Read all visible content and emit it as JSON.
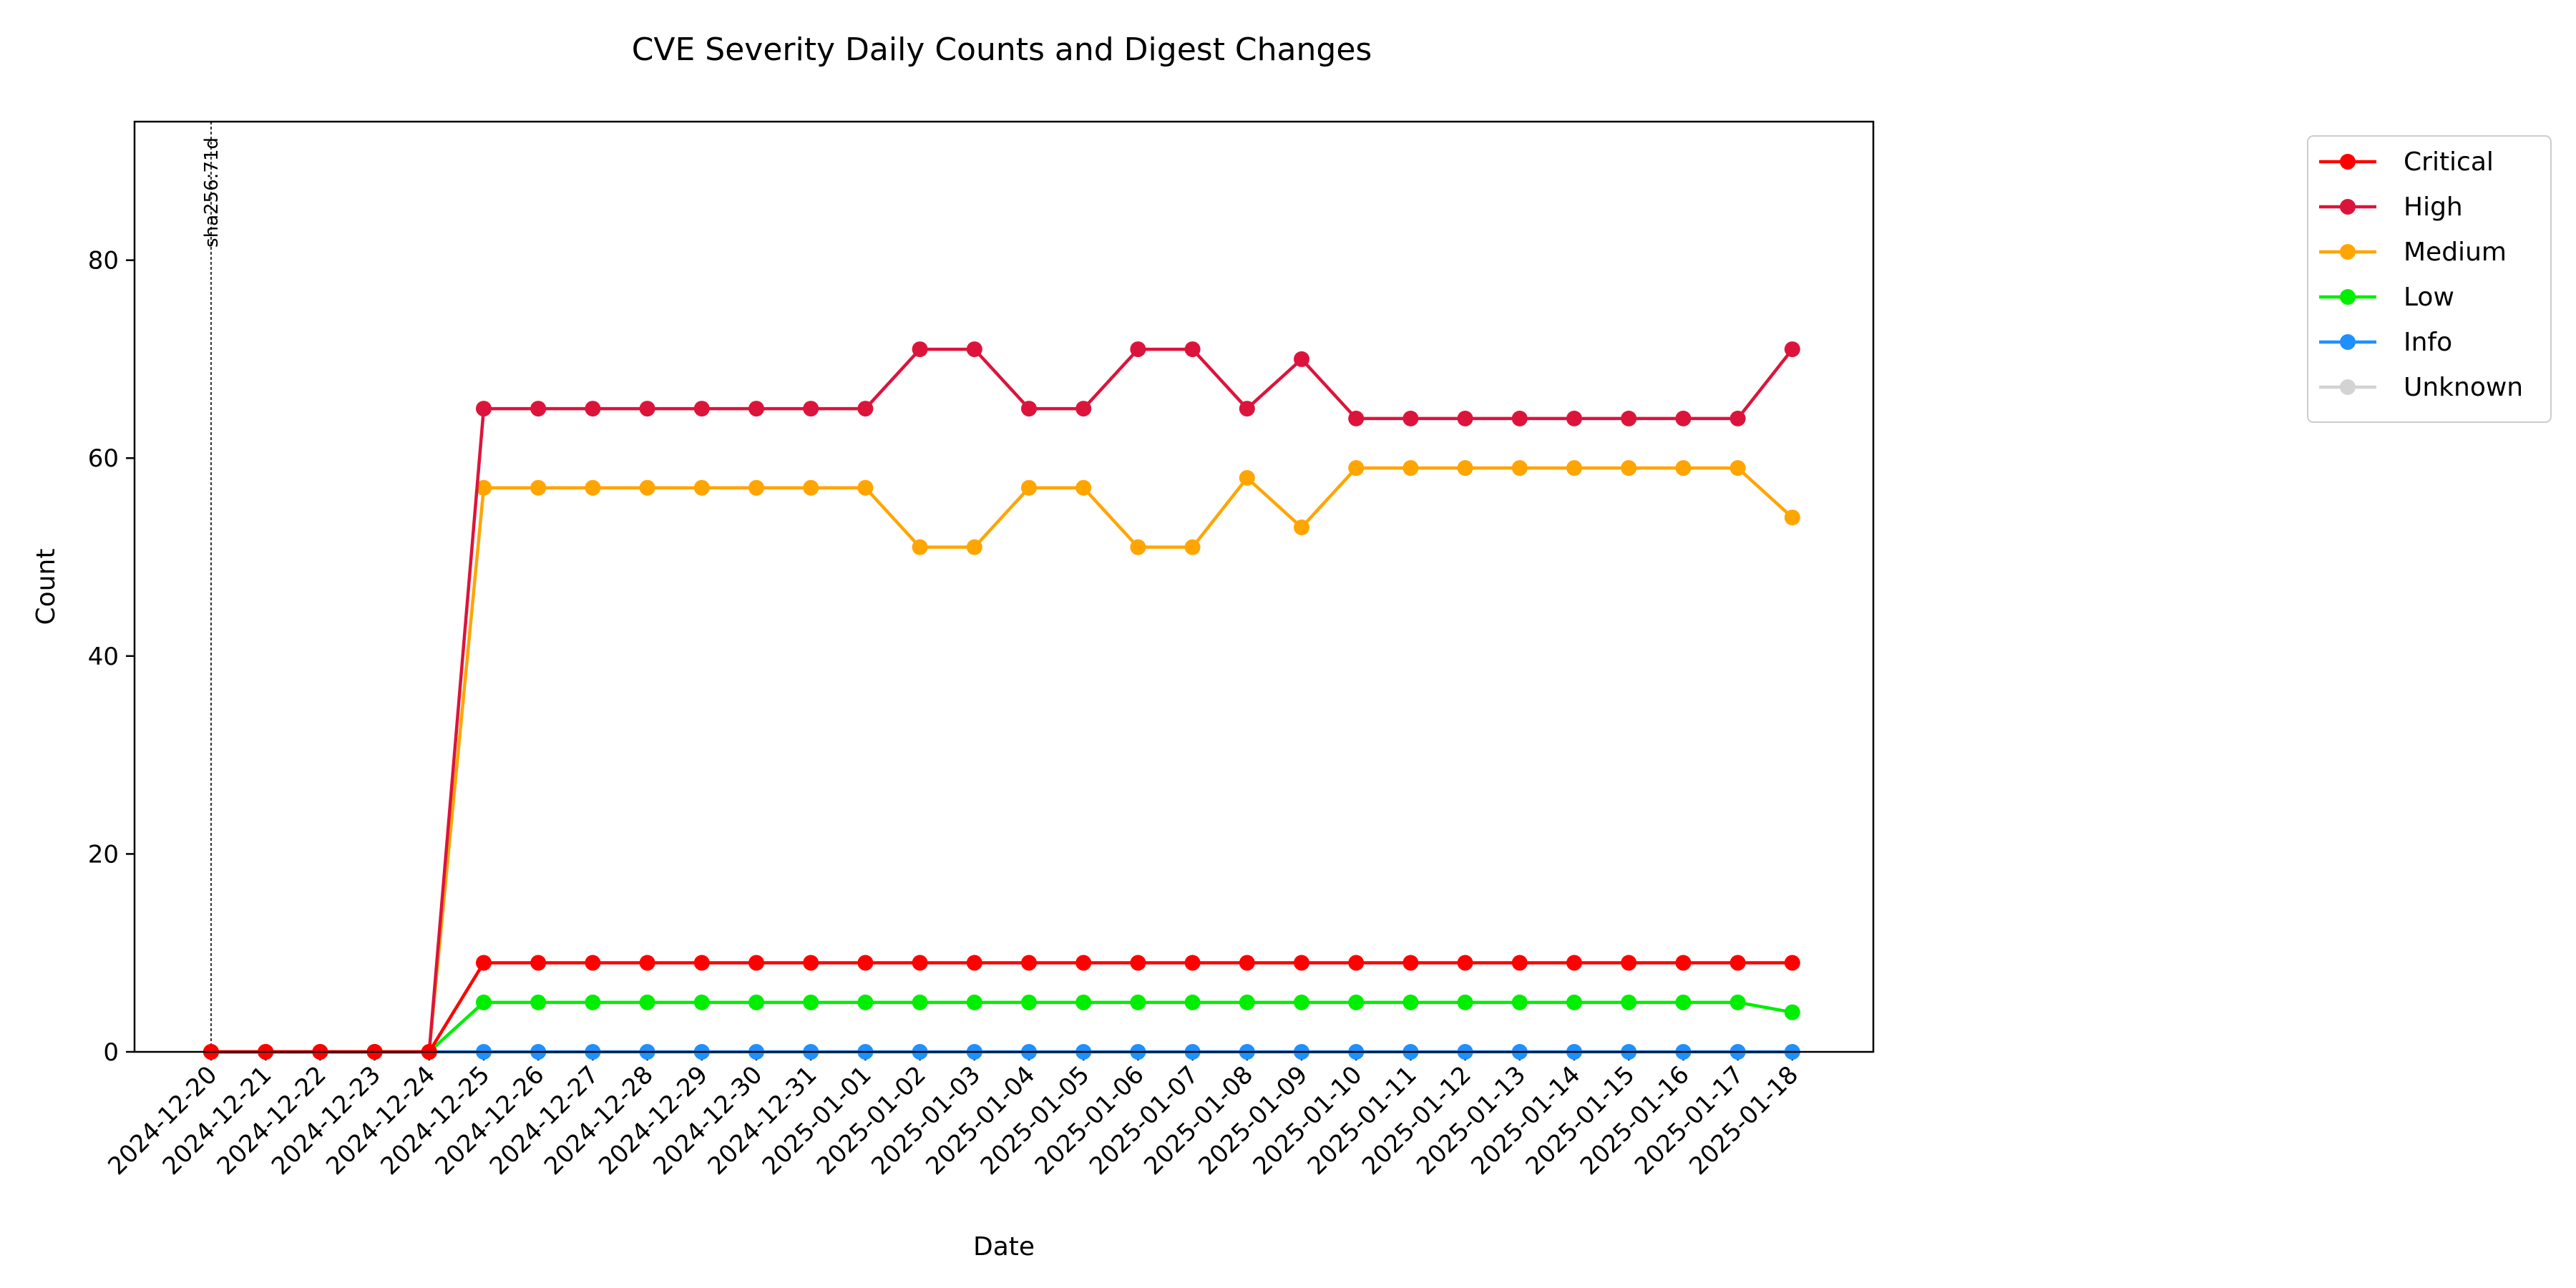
{
  "chart_data": {
    "type": "line",
    "title": "CVE Severity Daily Counts and Digest Changes",
    "xlabel": "Date",
    "ylabel": "Count",
    "ylim": [
      0,
      94
    ],
    "yticks": [
      0,
      20,
      40,
      60,
      80
    ],
    "grid": false,
    "legend_position": "outside-top-right",
    "x": [
      "2024-12-20",
      "2024-12-21",
      "2024-12-22",
      "2024-12-23",
      "2024-12-24",
      "2024-12-25",
      "2024-12-26",
      "2024-12-27",
      "2024-12-28",
      "2024-12-29",
      "2024-12-30",
      "2024-12-31",
      "2025-01-01",
      "2025-01-02",
      "2025-01-03",
      "2025-01-04",
      "2025-01-05",
      "2025-01-06",
      "2025-01-07",
      "2025-01-08",
      "2025-01-09",
      "2025-01-10",
      "2025-01-11",
      "2025-01-12",
      "2025-01-13",
      "2025-01-14",
      "2025-01-15",
      "2025-01-16",
      "2025-01-17",
      "2025-01-18"
    ],
    "series": [
      {
        "name": "Critical",
        "color": "#ff0000",
        "values": [
          0,
          0,
          0,
          0,
          0,
          9,
          9,
          9,
          9,
          9,
          9,
          9,
          9,
          9,
          9,
          9,
          9,
          9,
          9,
          9,
          9,
          9,
          9,
          9,
          9,
          9,
          9,
          9,
          9,
          9
        ]
      },
      {
        "name": "High",
        "color": "#dc143c",
        "values": [
          0,
          0,
          0,
          0,
          0,
          65,
          65,
          65,
          65,
          65,
          65,
          65,
          65,
          71,
          71,
          65,
          65,
          71,
          71,
          65,
          70,
          64,
          64,
          64,
          64,
          64,
          64,
          64,
          64,
          71
        ]
      },
      {
        "name": "Medium",
        "color": "#ffa500",
        "values": [
          0,
          0,
          0,
          0,
          0,
          57,
          57,
          57,
          57,
          57,
          57,
          57,
          57,
          51,
          51,
          57,
          57,
          51,
          51,
          58,
          53,
          59,
          59,
          59,
          59,
          59,
          59,
          59,
          59,
          54
        ]
      },
      {
        "name": "Low",
        "color": "#00ee00",
        "values": [
          0,
          0,
          0,
          0,
          0,
          5,
          5,
          5,
          5,
          5,
          5,
          5,
          5,
          5,
          5,
          5,
          5,
          5,
          5,
          5,
          5,
          5,
          5,
          5,
          5,
          5,
          5,
          5,
          5,
          4
        ]
      },
      {
        "name": "Info",
        "color": "#1e90ff",
        "values": [
          0,
          0,
          0,
          0,
          0,
          0,
          0,
          0,
          0,
          0,
          0,
          0,
          0,
          0,
          0,
          0,
          0,
          0,
          0,
          0,
          0,
          0,
          0,
          0,
          0,
          0,
          0,
          0,
          0,
          0
        ]
      },
      {
        "name": "Unknown",
        "color": "#d3d3d3",
        "values": [
          0,
          0,
          0,
          0,
          0,
          0,
          0,
          0,
          0,
          0,
          0,
          0,
          0,
          0,
          0,
          0,
          0,
          0,
          0,
          0,
          0,
          0,
          0,
          0,
          0,
          0,
          0,
          0,
          0,
          0
        ]
      }
    ],
    "annotations": [
      {
        "x": "2024-12-20",
        "text": "sha256:71d",
        "style": "dashed-vertical-line"
      }
    ]
  }
}
